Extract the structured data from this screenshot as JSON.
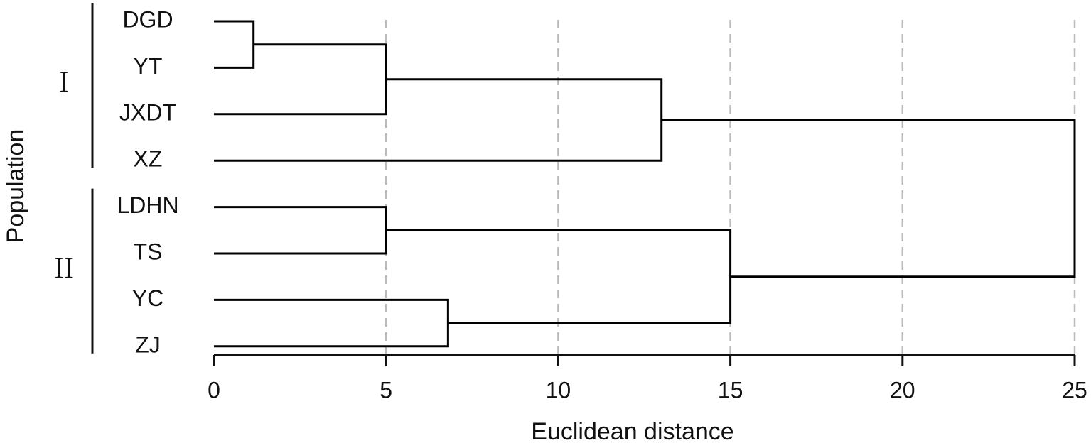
{
  "chart_data": {
    "type": "dendrogram",
    "xlabel": "Euclidean distance",
    "ylabel": "Population",
    "leaves": [
      "DGD",
      "YT",
      "JXDT",
      "XZ",
      "LDHN",
      "TS",
      "YC",
      "ZJ"
    ],
    "merges": [
      {
        "children": [
          0,
          1
        ],
        "height": 1.15
      },
      {
        "children": [
          8,
          2
        ],
        "height": 5
      },
      {
        "children": [
          9,
          3
        ],
        "height": 13
      },
      {
        "children": [
          4,
          5
        ],
        "height": 5
      },
      {
        "children": [
          6,
          7
        ],
        "height": 6.8
      },
      {
        "children": [
          11,
          12
        ],
        "height": 15
      },
      {
        "children": [
          10,
          13
        ],
        "height": 25
      }
    ],
    "groups": [
      {
        "label": "I",
        "leaves": [
          0,
          3
        ]
      },
      {
        "label": "II",
        "leaves": [
          4,
          7
        ]
      }
    ],
    "xlim": [
      0,
      25
    ],
    "xticks": [
      0,
      5,
      10,
      15,
      20,
      25
    ],
    "grid": true,
    "color": "#000000"
  }
}
